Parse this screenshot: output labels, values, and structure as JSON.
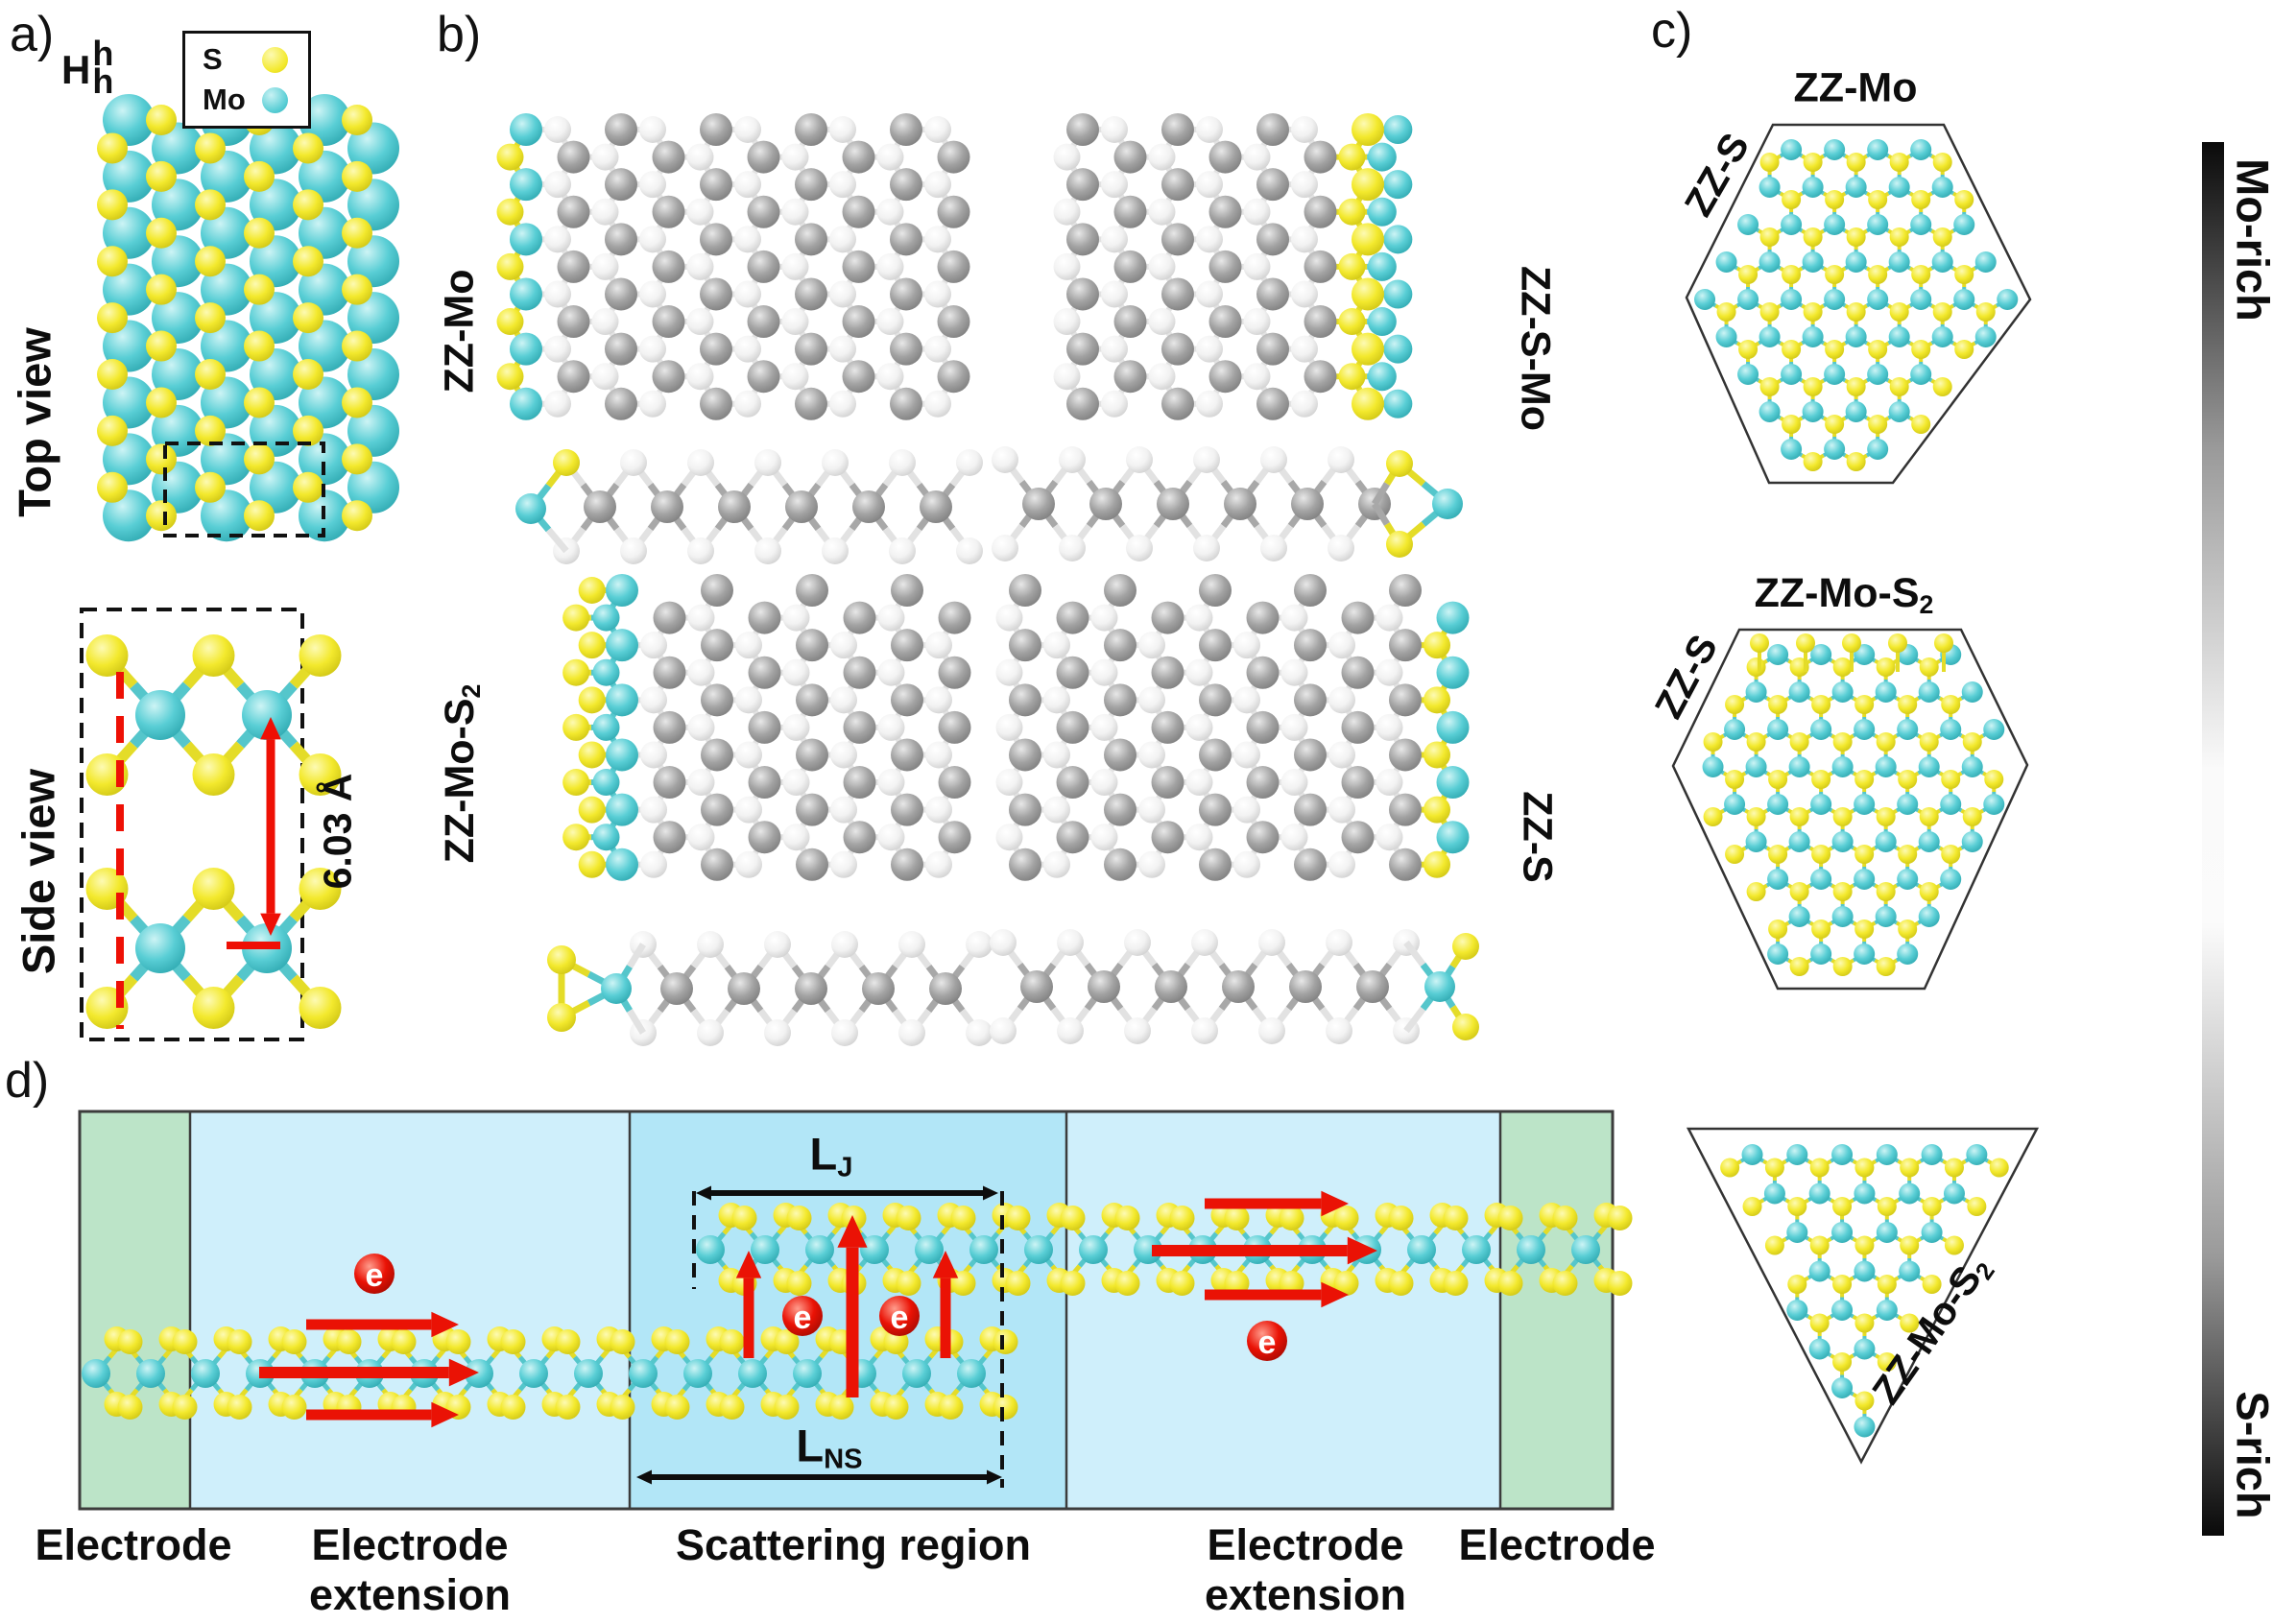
{
  "figure": {
    "panel_a": "a)",
    "panel_b": "b)",
    "panel_c": "c)",
    "panel_d": "d)"
  },
  "legend": {
    "notation_base": "H",
    "notation_top": "h",
    "notation_bottom": "h",
    "sulfur_label": "S",
    "molybdenum_label": "Mo"
  },
  "panel_a": {
    "top_view_label": "Top view",
    "side_view_label": "Side view",
    "layer_distance": "6.03 Å"
  },
  "panel_b": {
    "edge_zz_mo": "ZZ-Mo",
    "edge_zz_s_mo": "ZZ-S-Mo",
    "edge_zz_mo_s2_base": "ZZ-Mo-S",
    "edge_zz_mo_s2_sub": "2",
    "edge_zz_s": "ZZ-S"
  },
  "panel_c": {
    "flake1_title": "ZZ-Mo",
    "flake1_edge_label": "ZZ-S",
    "flake2_title_base": "ZZ-Mo-S",
    "flake2_title_sub": "2",
    "flake2_edge_label": "ZZ-S",
    "flake3_edge_base": "ZZ-Mo-S",
    "flake3_edge_sub": "2",
    "gradient_top_label": "Mo-rich",
    "gradient_bottom_label": "S-rich"
  },
  "panel_d": {
    "region_labels": [
      "Electrode",
      "Electrode extension",
      "Scattering region",
      "Electrode extension",
      "Electrode"
    ],
    "junction_length_base": "L",
    "junction_length_sub": "J",
    "nanosheet_length_base": "L",
    "nanosheet_length_sub": "NS",
    "electron_symbol": "e"
  },
  "colors": {
    "sulfur_yellow": "#f2e82e",
    "molybdenum_cyan": "#59ced5",
    "electrode_green": "#bce4c8",
    "extension_blue": "#cfeffb",
    "scattering_blue": "#b2e6f7",
    "arrow_red": "#ea1205",
    "annotation_black": "#111111"
  }
}
